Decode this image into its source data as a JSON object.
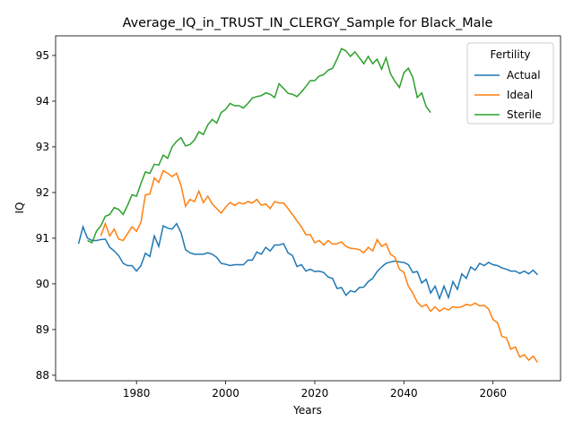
{
  "chart_data": {
    "type": "line",
    "title": "Average_IQ_in_TRUST_IN_CLERGY_Sample for Black_Male",
    "x_label": "Years",
    "y_label": "IQ",
    "legend_title": "Fertility",
    "legend_loc": "upper right",
    "grid": false,
    "xlim": [
      1961.85,
      2075.15
    ],
    "ylim": [
      87.88,
      95.43
    ],
    "xticks": [
      1980,
      2000,
      2020,
      2040,
      2060
    ],
    "yticks": [
      88,
      89,
      90,
      91,
      92,
      93,
      94,
      95
    ],
    "x": [
      1967,
      1968,
      1969,
      1970,
      1971,
      1972,
      1973,
      1974,
      1975,
      1976,
      1977,
      1978,
      1979,
      1980,
      1981,
      1982,
      1983,
      1984,
      1985,
      1986,
      1987,
      1988,
      1989,
      1990,
      1991,
      1992,
      1993,
      1994,
      1995,
      1996,
      1997,
      1998,
      1999,
      2000,
      2001,
      2002,
      2003,
      2004,
      2005,
      2006,
      2007,
      2008,
      2009,
      2010,
      2011,
      2012,
      2013,
      2014,
      2015,
      2016,
      2017,
      2018,
      2019,
      2020,
      2021,
      2022,
      2023,
      2024,
      2025,
      2026,
      2027,
      2028,
      2029,
      2030,
      2031,
      2032,
      2033,
      2034,
      2035,
      2036,
      2037,
      2038,
      2039,
      2040,
      2041,
      2042,
      2043,
      2044,
      2045,
      2046,
      2047,
      2048,
      2049,
      2050,
      2051,
      2052,
      2053,
      2054,
      2055,
      2056,
      2057,
      2058,
      2059,
      2060,
      2061,
      2062,
      2063,
      2064,
      2065,
      2066,
      2067,
      2068,
      2069,
      2070
    ],
    "series": [
      {
        "name": "Actual",
        "color": "#1f77b4",
        "values": [
          90.88,
          91.25,
          91.0,
          90.95,
          90.95,
          90.97,
          90.98,
          90.8,
          90.72,
          90.62,
          90.45,
          90.4,
          90.4,
          90.28,
          90.4,
          90.67,
          90.6,
          91.05,
          90.82,
          91.27,
          91.22,
          91.2,
          91.32,
          91.12,
          90.75,
          90.68,
          90.65,
          90.65,
          90.65,
          90.68,
          90.65,
          90.58,
          90.45,
          90.43,
          90.4,
          90.42,
          90.42,
          90.42,
          90.52,
          90.52,
          90.7,
          90.65,
          90.8,
          90.72,
          90.85,
          90.85,
          90.88,
          90.68,
          90.62,
          90.38,
          90.42,
          90.28,
          90.32,
          90.27,
          90.28,
          90.25,
          90.15,
          90.12,
          89.9,
          89.92,
          89.75,
          89.85,
          89.82,
          89.92,
          89.93,
          90.05,
          90.12,
          90.27,
          90.37,
          90.45,
          90.48,
          90.5,
          90.48,
          90.47,
          90.42,
          90.25,
          90.27,
          90.02,
          90.1,
          89.8,
          89.95,
          89.68,
          89.95,
          89.7,
          90.05,
          89.88,
          90.22,
          90.12,
          90.37,
          90.3,
          90.45,
          90.4,
          90.47,
          90.42,
          90.4,
          90.35,
          90.32,
          90.28,
          90.28,
          90.23,
          90.28,
          90.22,
          90.3,
          90.2
        ]
      },
      {
        "name": "Ideal",
        "color": "#ff7f0e",
        "values": [
          null,
          null,
          null,
          null,
          null,
          91.05,
          91.32,
          91.05,
          91.2,
          90.98,
          90.95,
          91.1,
          91.25,
          91.15,
          91.35,
          91.95,
          91.97,
          92.32,
          92.22,
          92.48,
          92.42,
          92.35,
          92.42,
          92.15,
          91.7,
          91.85,
          91.8,
          92.03,
          91.78,
          91.92,
          91.75,
          91.65,
          91.55,
          91.68,
          91.78,
          91.72,
          91.78,
          91.75,
          91.8,
          91.77,
          91.85,
          91.72,
          91.75,
          91.65,
          91.8,
          91.77,
          91.77,
          91.65,
          91.52,
          91.38,
          91.25,
          91.08,
          91.08,
          90.9,
          90.95,
          90.85,
          90.95,
          90.87,
          90.88,
          90.92,
          90.82,
          90.78,
          90.77,
          90.75,
          90.68,
          90.8,
          90.72,
          90.97,
          90.82,
          90.88,
          90.65,
          90.58,
          90.32,
          90.25,
          89.95,
          89.8,
          89.6,
          89.5,
          89.55,
          89.4,
          89.5,
          89.4,
          89.47,
          89.43,
          89.5,
          89.48,
          89.5,
          89.55,
          89.53,
          89.58,
          89.52,
          89.53,
          89.45,
          89.22,
          89.15,
          88.85,
          88.82,
          88.57,
          88.62,
          88.4,
          88.45,
          88.33,
          88.42,
          88.28
        ]
      },
      {
        "name": "Sterile",
        "color": "#2ca02c",
        "values": [
          null,
          null,
          90.95,
          90.9,
          91.15,
          91.27,
          91.48,
          91.52,
          91.67,
          91.63,
          91.52,
          91.72,
          91.95,
          91.92,
          92.2,
          92.45,
          92.42,
          92.62,
          92.6,
          92.82,
          92.75,
          93.0,
          93.12,
          93.2,
          93.02,
          93.05,
          93.15,
          93.33,
          93.27,
          93.48,
          93.6,
          93.52,
          93.75,
          93.82,
          93.95,
          93.9,
          93.9,
          93.85,
          93.95,
          94.07,
          94.1,
          94.12,
          94.18,
          94.15,
          94.08,
          94.38,
          94.28,
          94.17,
          94.15,
          94.1,
          94.2,
          94.32,
          94.45,
          94.45,
          94.55,
          94.58,
          94.68,
          94.72,
          94.92,
          95.15,
          95.1,
          94.98,
          95.08,
          94.95,
          94.82,
          94.98,
          94.82,
          94.92,
          94.7,
          94.95,
          94.6,
          94.43,
          94.3,
          94.62,
          94.72,
          94.52,
          94.08,
          94.18,
          93.88,
          93.75,
          null,
          null,
          null,
          null,
          null,
          null,
          null,
          null,
          null,
          null,
          null,
          null,
          null,
          null,
          null,
          null,
          null,
          null,
          null,
          null,
          null,
          null,
          null,
          null
        ]
      }
    ]
  }
}
